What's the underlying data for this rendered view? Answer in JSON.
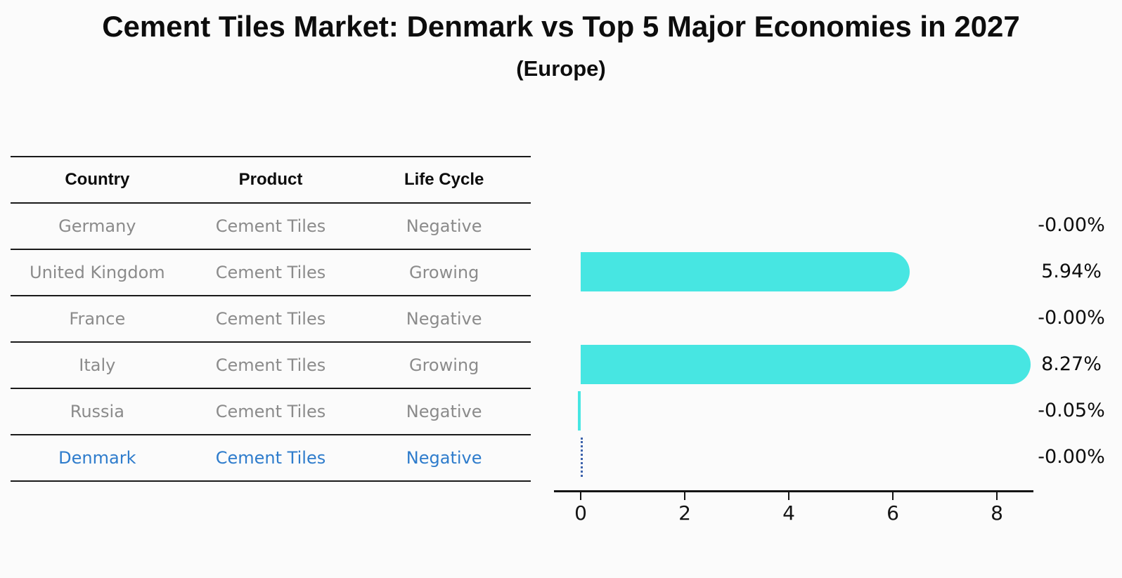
{
  "header": {
    "title": "Cement Tiles Market: Denmark vs Top 5 Major Economies in 2027",
    "subtitle": "(Europe)"
  },
  "table": {
    "columns": [
      "Country",
      "Product",
      "Life Cycle"
    ],
    "rows": [
      {
        "country": "Germany",
        "product": "Cement Tiles",
        "life_cycle": "Negative",
        "highlight": false
      },
      {
        "country": "United Kingdom",
        "product": "Cement Tiles",
        "life_cycle": "Growing",
        "highlight": false
      },
      {
        "country": "France",
        "product": "Cement Tiles",
        "life_cycle": "Negative",
        "highlight": false
      },
      {
        "country": "Italy",
        "product": "Cement Tiles",
        "life_cycle": "Growing",
        "highlight": false
      },
      {
        "country": "Russia",
        "product": "Cement Tiles",
        "life_cycle": "Negative",
        "highlight": false
      },
      {
        "country": "Denmark",
        "product": "Cement Tiles",
        "life_cycle": "Negative",
        "highlight": true
      }
    ],
    "text_color": "#8b8b8b",
    "highlight_text_color": "#2e7ccc"
  },
  "chart_data": {
    "type": "bar",
    "orientation": "horizontal",
    "title": "Cement Tiles Market: Denmark vs Top 5 Major Economies in 2027",
    "subtitle": "(Europe)",
    "categories": [
      "Germany",
      "United Kingdom",
      "France",
      "Italy",
      "Russia",
      "Denmark"
    ],
    "values": [
      -0.0,
      5.94,
      -0.0,
      8.27,
      -0.05,
      -0.0
    ],
    "value_labels": [
      "-0.00%",
      "5.94%",
      "-0.00%",
      "8.27%",
      "-0.05%",
      "-0.00%"
    ],
    "unit": "%",
    "xticks": [
      0,
      2,
      4,
      6,
      8
    ],
    "xlim": [
      -0.5,
      8.7
    ],
    "grid": false,
    "legend": false,
    "bar_color": "#47e6e2",
    "highlight_index": 5,
    "highlight_marker": "dotted-zero-line",
    "highlight_line_color": "#3d63ac"
  }
}
